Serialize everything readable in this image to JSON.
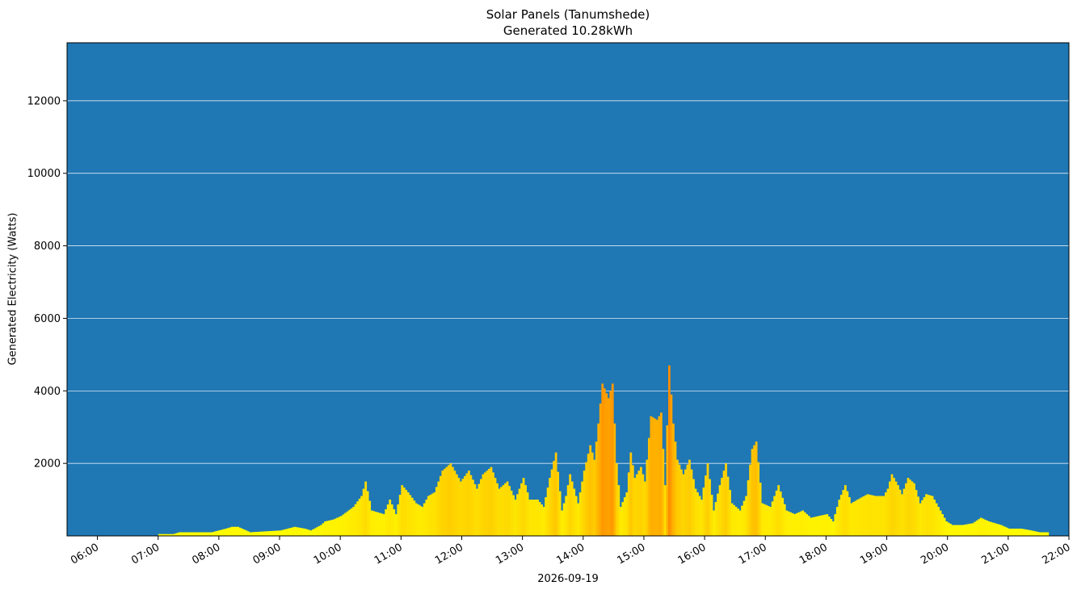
{
  "chart_data": {
    "type": "bar",
    "title": "Solar Panels (Tanumshede)",
    "subtitle": "Generated 10.28kWh",
    "xlabel": "2026-09-19",
    "ylabel": "Generated Electricity (Watts)",
    "xlim": [
      "05:30",
      "22:00"
    ],
    "ylim": [
      0,
      13600
    ],
    "y_ticks": [
      2000,
      4000,
      6000,
      8000,
      10000,
      12000
    ],
    "x_ticks": [
      "06:00",
      "07:00",
      "08:00",
      "09:00",
      "10:00",
      "11:00",
      "12:00",
      "13:00",
      "14:00",
      "15:00",
      "16:00",
      "17:00",
      "18:00",
      "19:00",
      "20:00",
      "21:00",
      "22:00"
    ],
    "grid": "horizontal",
    "colors": {
      "background": "#1f77b4",
      "gridline": "#ffffff",
      "low": "#ffff00",
      "high": "#ff8c00"
    },
    "interval_minutes": 2,
    "series": [
      {
        "points": [
          [
            "07:00",
            50
          ],
          [
            "07:14",
            50
          ],
          [
            "07:20",
            100
          ],
          [
            "07:36",
            100
          ],
          [
            "07:46",
            100
          ],
          [
            "07:52",
            100
          ],
          [
            "08:06",
            200
          ],
          [
            "08:12",
            250
          ],
          [
            "08:18",
            250
          ],
          [
            "08:22",
            200
          ],
          [
            "08:30",
            100
          ],
          [
            "09:00",
            150
          ],
          [
            "09:14",
            250
          ],
          [
            "09:24",
            200
          ],
          [
            "09:30",
            150
          ],
          [
            "09:40",
            300
          ],
          [
            "09:44",
            400
          ],
          [
            "09:52",
            450
          ],
          [
            "10:00",
            550
          ],
          [
            "10:12",
            800
          ],
          [
            "10:20",
            1100
          ],
          [
            "10:24",
            1500
          ],
          [
            "10:30",
            700
          ],
          [
            "10:42",
            600
          ],
          [
            "10:48",
            1000
          ],
          [
            "10:54",
            600
          ],
          [
            "11:00",
            1400
          ],
          [
            "11:06",
            1200
          ],
          [
            "11:14",
            900
          ],
          [
            "11:20",
            800
          ],
          [
            "11:26",
            1100
          ],
          [
            "11:32",
            1200
          ],
          [
            "11:40",
            1800
          ],
          [
            "11:48",
            2000
          ],
          [
            "11:58",
            1500
          ],
          [
            "12:06",
            1800
          ],
          [
            "12:14",
            1300
          ],
          [
            "12:20",
            1700
          ],
          [
            "12:28",
            1900
          ],
          [
            "12:36",
            1300
          ],
          [
            "12:44",
            1500
          ],
          [
            "12:52",
            1000
          ],
          [
            "13:00",
            1600
          ],
          [
            "13:06",
            1000
          ],
          [
            "13:14",
            1000
          ],
          [
            "13:20",
            800
          ],
          [
            "13:26",
            1600
          ],
          [
            "13:32",
            2300
          ],
          [
            "13:38",
            700
          ],
          [
            "13:42",
            1100
          ],
          [
            "13:46",
            1700
          ],
          [
            "13:54",
            900
          ],
          [
            "14:00",
            1800
          ],
          [
            "14:06",
            2500
          ],
          [
            "14:10",
            2100
          ],
          [
            "14:14",
            3100
          ],
          [
            "14:18",
            4200
          ],
          [
            "14:24",
            3800
          ],
          [
            "14:28",
            4200
          ],
          [
            "14:32",
            2000
          ],
          [
            "14:36",
            800
          ],
          [
            "14:42",
            1200
          ],
          [
            "14:46",
            2300
          ],
          [
            "14:50",
            1600
          ],
          [
            "14:56",
            1900
          ],
          [
            "15:00",
            1500
          ],
          [
            "15:06",
            3300
          ],
          [
            "15:12",
            3200
          ],
          [
            "15:16",
            3400
          ],
          [
            "15:20",
            1400
          ],
          [
            "15:24",
            4700
          ],
          [
            "15:28",
            3100
          ],
          [
            "15:32",
            2100
          ],
          [
            "15:38",
            1700
          ],
          [
            "15:44",
            2100
          ],
          [
            "15:50",
            1300
          ],
          [
            "15:56",
            1000
          ],
          [
            "16:02",
            2000
          ],
          [
            "16:08",
            700
          ],
          [
            "16:14",
            1400
          ],
          [
            "16:20",
            2000
          ],
          [
            "16:26",
            900
          ],
          [
            "16:34",
            700
          ],
          [
            "16:40",
            1100
          ],
          [
            "16:46",
            2400
          ],
          [
            "16:50",
            2600
          ],
          [
            "16:56",
            900
          ],
          [
            "17:04",
            800
          ],
          [
            "17:12",
            1400
          ],
          [
            "17:20",
            700
          ],
          [
            "17:28",
            600
          ],
          [
            "17:36",
            700
          ],
          [
            "17:44",
            500
          ],
          [
            "17:52",
            550
          ],
          [
            "18:00",
            600
          ],
          [
            "18:06",
            400
          ],
          [
            "18:12",
            1000
          ],
          [
            "18:18",
            1400
          ],
          [
            "18:24",
            900
          ],
          [
            "18:30",
            1000
          ],
          [
            "18:40",
            1150
          ],
          [
            "18:48",
            1100
          ],
          [
            "18:56",
            1100
          ],
          [
            "19:00",
            1300
          ],
          [
            "19:04",
            1700
          ],
          [
            "19:10",
            1400
          ],
          [
            "19:14",
            1150
          ],
          [
            "19:20",
            1600
          ],
          [
            "19:26",
            1450
          ],
          [
            "19:32",
            900
          ],
          [
            "19:38",
            1150
          ],
          [
            "19:44",
            1100
          ],
          [
            "19:50",
            800
          ],
          [
            "19:58",
            400
          ],
          [
            "20:04",
            300
          ],
          [
            "20:14",
            300
          ],
          [
            "20:24",
            350
          ],
          [
            "20:32",
            500
          ],
          [
            "20:40",
            400
          ],
          [
            "20:52",
            300
          ],
          [
            "21:00",
            200
          ],
          [
            "21:12",
            200
          ],
          [
            "21:22",
            150
          ],
          [
            "21:30",
            100
          ],
          [
            "21:38",
            100
          ]
        ]
      }
    ]
  }
}
